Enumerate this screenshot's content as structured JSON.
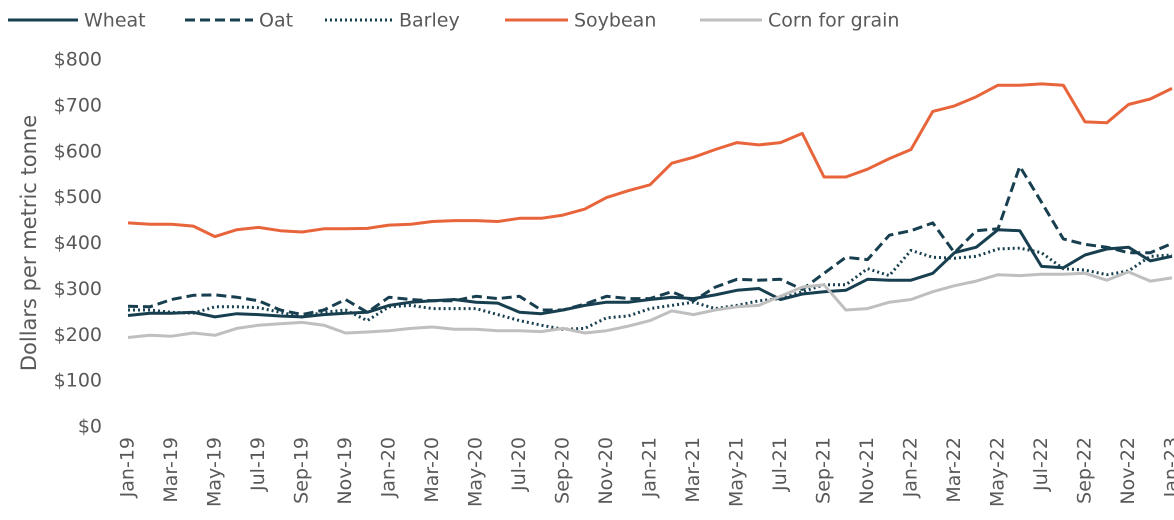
{
  "chart_data": {
    "type": "line",
    "y_label": "Dollars per metric tonne",
    "categories": [
      "Jan-19",
      null,
      "Mar-19",
      null,
      "May-19",
      null,
      "Jul-19",
      null,
      "Sep-19",
      null,
      "Nov-19",
      null,
      "Jan-20",
      null,
      "Mar-20",
      null,
      "May-20",
      null,
      "Jul-20",
      null,
      "Sep-20",
      null,
      "Nov-20",
      null,
      "Jan-21",
      null,
      "Mar-21",
      null,
      "May-21",
      null,
      "Jul-21",
      null,
      "Sep-21",
      null,
      "Nov-21",
      null,
      "Jan-22",
      null,
      "Mar-22",
      null,
      "May-22",
      null,
      "Jul-22",
      null,
      "Sep-22",
      null,
      "Nov-22",
      null,
      "Jan-23"
    ],
    "series": [
      {
        "name": "Wheat",
        "color": "#173f4f",
        "style": "solid",
        "values": [
          243,
          248,
          248,
          250,
          240,
          247,
          245,
          242,
          240,
          245,
          248,
          250,
          265,
          272,
          275,
          278,
          272,
          270,
          250,
          247,
          255,
          265,
          272,
          272,
          278,
          283,
          280,
          288,
          298,
          302,
          278,
          290,
          295,
          298,
          322,
          320,
          320,
          335,
          380,
          392,
          430,
          428,
          350,
          347,
          375,
          388,
          392,
          362,
          372
        ]
      },
      {
        "name": "Oat",
        "color": "#173f4f",
        "style": "dashed",
        "values": [
          263,
          262,
          278,
          287,
          288,
          283,
          275,
          255,
          245,
          255,
          278,
          250,
          283,
          278,
          275,
          275,
          285,
          280,
          285,
          255,
          255,
          268,
          285,
          280,
          280,
          295,
          275,
          305,
          322,
          320,
          322,
          300,
          335,
          370,
          365,
          418,
          428,
          445,
          380,
          428,
          432,
          568,
          490,
          410,
          398,
          392,
          380,
          380,
          400
        ]
      },
      {
        "name": "Barley",
        "color": "#173f4f",
        "style": "dotted",
        "values": [
          255,
          255,
          250,
          248,
          262,
          262,
          260,
          250,
          240,
          250,
          255,
          232,
          262,
          265,
          258,
          258,
          258,
          245,
          232,
          222,
          213,
          215,
          238,
          242,
          258,
          265,
          272,
          258,
          265,
          275,
          280,
          295,
          310,
          310,
          345,
          330,
          385,
          370,
          368,
          372,
          388,
          390,
          380,
          345,
          342,
          332,
          340,
          372,
          375
        ]
      },
      {
        "name": "Soybean",
        "color": "#e8643a",
        "style": "solid",
        "values": [
          445,
          442,
          442,
          438,
          415,
          430,
          435,
          428,
          425,
          432,
          432,
          433,
          440,
          442,
          448,
          450,
          450,
          448,
          455,
          455,
          462,
          475,
          500,
          515,
          528,
          575,
          588,
          605,
          620,
          615,
          620,
          640,
          545,
          545,
          562,
          585,
          605,
          688,
          700,
          720,
          745,
          745,
          748,
          745,
          665,
          663,
          703,
          715,
          738
        ]
      },
      {
        "name": "Corn for grain",
        "color": "#bfbfbf",
        "style": "solid",
        "values": [
          195,
          200,
          198,
          205,
          200,
          215,
          222,
          225,
          228,
          222,
          205,
          207,
          210,
          215,
          218,
          213,
          213,
          210,
          210,
          208,
          215,
          205,
          210,
          220,
          232,
          253,
          245,
          255,
          262,
          265,
          285,
          305,
          310,
          255,
          258,
          272,
          278,
          295,
          308,
          318,
          332,
          330,
          333,
          333,
          335,
          320,
          338,
          318,
          325
        ]
      }
    ],
    "ylim": [
      0,
      800
    ],
    "yticks": [
      {
        "value": 0,
        "label": "$0"
      },
      {
        "value": 100,
        "label": "$100"
      },
      {
        "value": 200,
        "label": "$200"
      },
      {
        "value": 300,
        "label": "$300"
      },
      {
        "value": 400,
        "label": "$400"
      },
      {
        "value": 500,
        "label": "$500"
      },
      {
        "value": 600,
        "label": "$600"
      },
      {
        "value": 700,
        "label": "$700"
      },
      {
        "value": 800,
        "label": "$800"
      }
    ],
    "legend": "top"
  }
}
